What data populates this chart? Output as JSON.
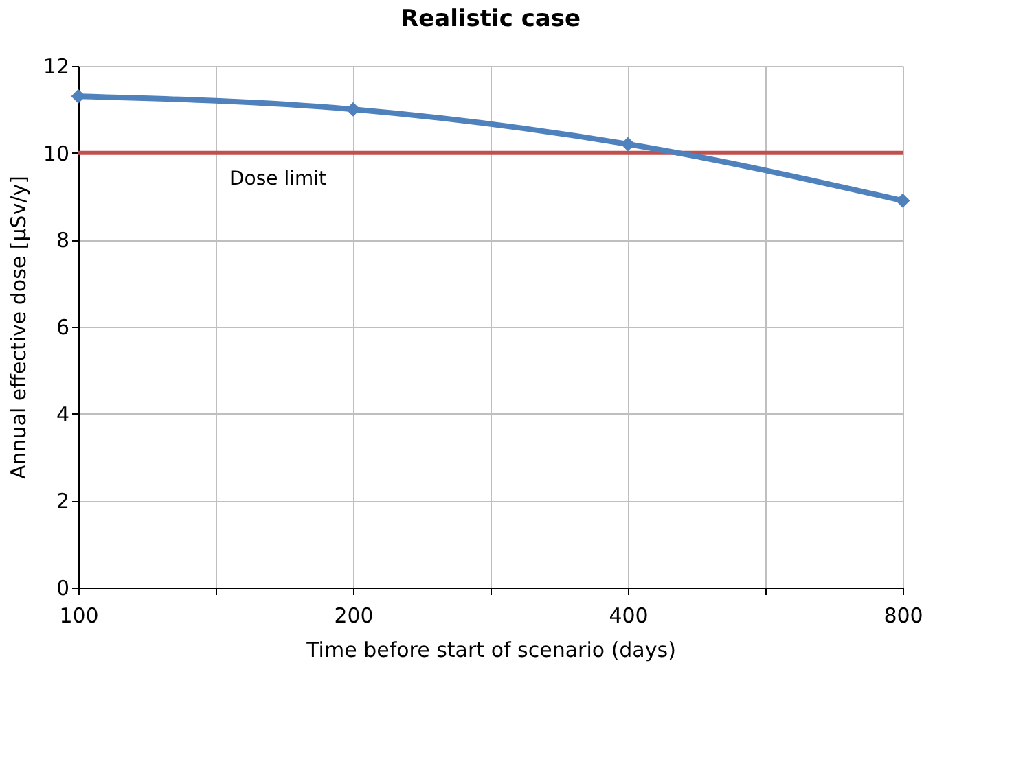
{
  "chart_data": {
    "type": "line",
    "title": "Realistic case",
    "xlabel": "Time before start of scenario (days)",
    "ylabel": "Annual effective dose [µSv/y]",
    "x": [
      100,
      200,
      400,
      800
    ],
    "series": [
      {
        "color": "#4f81bd",
        "values": [
          11.3,
          11.0,
          10.2,
          8.9
        ]
      }
    ],
    "log": "x",
    "xlim": [
      100,
      800
    ],
    "xticks": [
      100,
      {
        "value": 141.42,
        "label": null
      },
      200,
      {
        "value": 282.84,
        "label": null
      },
      400,
      {
        "value": 565.69,
        "label": null
      },
      800
    ],
    "ylim": [
      0,
      12
    ],
    "yticks": [
      0,
      2,
      4,
      6,
      8,
      10,
      12
    ],
    "ref_lines": [
      {
        "axis": "y",
        "value": 10,
        "label": "Dose limit",
        "color": "#c0504d"
      }
    ],
    "grid": true,
    "marker": "diamond",
    "line_style": "solid"
  }
}
